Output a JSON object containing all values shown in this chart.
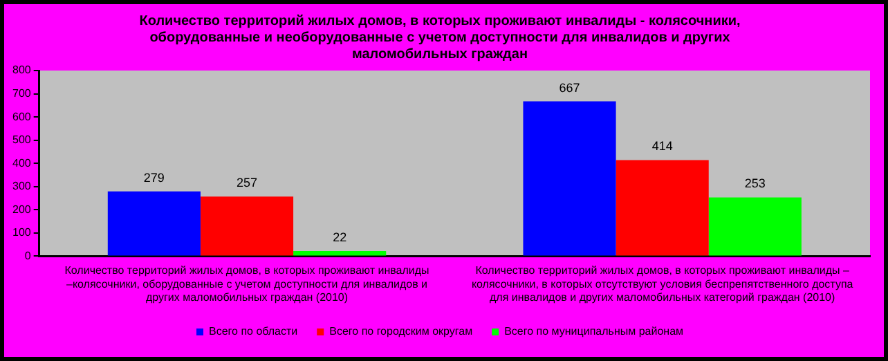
{
  "chart_data": {
    "type": "bar",
    "title": "Количество территорий жилых домов, в которых проживают инвалиды - колясочники, оборудованные и необорудованные с учетом доступности для инвалидов и других маломобильных граждан",
    "categories": [
      "Количество территорий жилых домов, в которых проживают инвалиды –колясочники, оборудованные с учетом доступности для инвалидов и других маломобильных граждан (2010)",
      "Количество территорий жилых домов, в которых проживают инвалиды – колясочники, в которых отсутствуют условия беспрепятственного доступа для инвалидов и других маломобильных категорий граждан (2010)"
    ],
    "series": [
      {
        "name": "Всего по области",
        "color": "#0000ff",
        "values": [
          279,
          667
        ]
      },
      {
        "name": "Всего по городским округам",
        "color": "#ff0000",
        "values": [
          257,
          414
        ]
      },
      {
        "name": "Всего по муниципальным районам",
        "color": "#00ff00",
        "values": [
          22,
          253
        ]
      }
    ],
    "ylim": [
      0,
      800
    ],
    "yticks": [
      0,
      100,
      200,
      300,
      400,
      500,
      600,
      700,
      800
    ],
    "grid": false,
    "legend": "bottom",
    "data_labels": true
  }
}
